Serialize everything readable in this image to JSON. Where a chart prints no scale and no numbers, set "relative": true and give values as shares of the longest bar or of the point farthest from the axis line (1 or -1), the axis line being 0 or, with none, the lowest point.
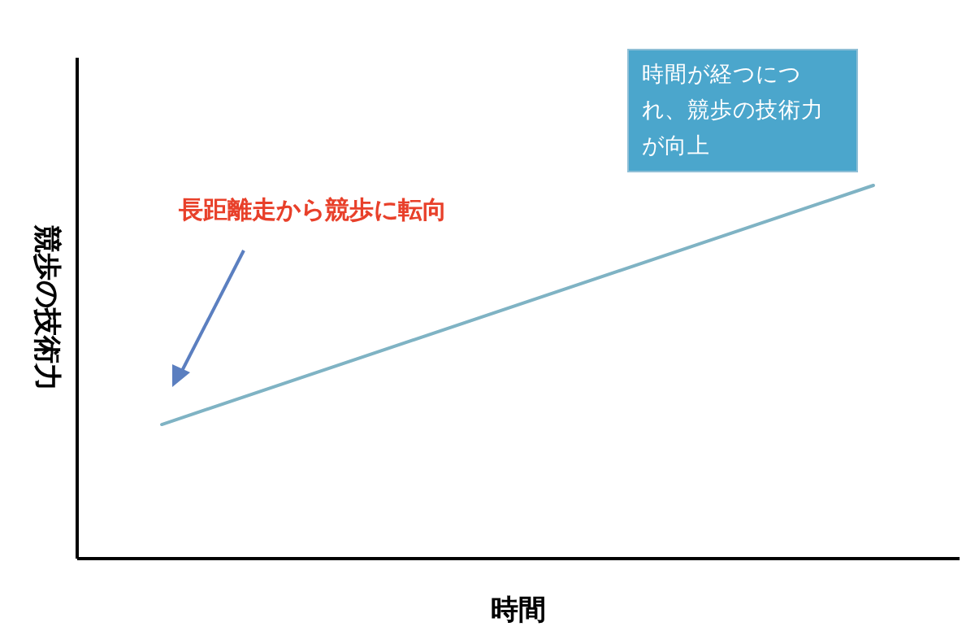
{
  "chart_data": {
    "type": "line",
    "relative": true,
    "xlabel": "時間",
    "ylabel": "競歩の技術力",
    "categories": [
      null,
      null
    ],
    "series": [
      {
        "color": "#7fb3c4",
        "values": [
          0.358,
          1
        ]
      }
    ],
    "annotations": [
      "長距離走から競歩に転向",
      "時間が経つにつれ、競歩の技術力が向上"
    ],
    "marker": "none",
    "line_style": "solid",
    "grid": false,
    "tick_labels": false
  }
}
